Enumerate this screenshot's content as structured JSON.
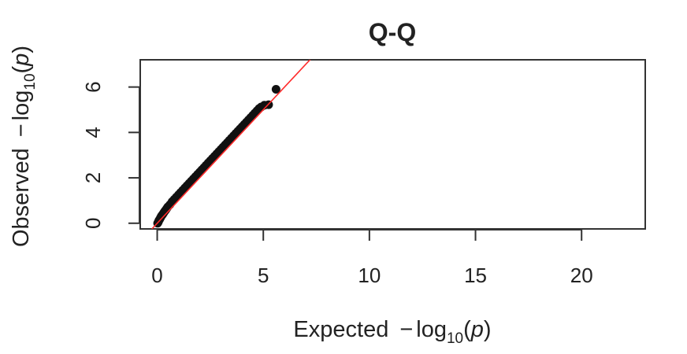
{
  "chart_data": {
    "type": "scatter",
    "title": "Q-Q",
    "xlabel": {
      "prefix": "Expected",
      "minus": "−",
      "log": "log",
      "sub": "10",
      "arg": "p"
    },
    "ylabel": {
      "prefix": "Observed",
      "minus": "−",
      "log": "log",
      "sub": "10",
      "arg": "p"
    },
    "xlim": [
      -0.8,
      23
    ],
    "ylim": [
      -0.25,
      7.2
    ],
    "xticks": [
      0,
      5,
      10,
      15,
      20
    ],
    "yticks": [
      0,
      2,
      4,
      6
    ],
    "grid": false,
    "series": [
      {
        "marker_color": "#111111",
        "points": [
          [
            0.02,
            0.0
          ],
          [
            0.05,
            0.05
          ],
          [
            0.08,
            0.12
          ],
          [
            0.12,
            0.18
          ],
          [
            0.16,
            0.25
          ],
          [
            0.2,
            0.32
          ],
          [
            0.25,
            0.38
          ],
          [
            0.3,
            0.45
          ],
          [
            0.35,
            0.52
          ],
          [
            0.4,
            0.58
          ],
          [
            0.45,
            0.65
          ],
          [
            0.5,
            0.72
          ],
          [
            0.6,
            0.82
          ],
          [
            0.7,
            0.95
          ],
          [
            0.8,
            1.05
          ],
          [
            0.9,
            1.15
          ],
          [
            1.0,
            1.25
          ],
          [
            1.1,
            1.35
          ],
          [
            1.2,
            1.45
          ],
          [
            1.3,
            1.55
          ],
          [
            1.4,
            1.65
          ],
          [
            1.5,
            1.75
          ],
          [
            1.6,
            1.85
          ],
          [
            1.7,
            1.95
          ],
          [
            1.8,
            2.05
          ],
          [
            1.9,
            2.15
          ],
          [
            2.0,
            2.25
          ],
          [
            2.1,
            2.35
          ],
          [
            2.2,
            2.45
          ],
          [
            2.3,
            2.55
          ],
          [
            2.4,
            2.65
          ],
          [
            2.5,
            2.75
          ],
          [
            2.6,
            2.85
          ],
          [
            2.7,
            2.95
          ],
          [
            2.8,
            3.05
          ],
          [
            2.9,
            3.15
          ],
          [
            3.0,
            3.25
          ],
          [
            3.1,
            3.35
          ],
          [
            3.2,
            3.45
          ],
          [
            3.3,
            3.55
          ],
          [
            3.4,
            3.65
          ],
          [
            3.5,
            3.75
          ],
          [
            3.6,
            3.85
          ],
          [
            3.7,
            3.95
          ],
          [
            3.8,
            4.05
          ],
          [
            3.9,
            4.15
          ],
          [
            4.0,
            4.25
          ],
          [
            4.1,
            4.35
          ],
          [
            4.2,
            4.45
          ],
          [
            4.3,
            4.55
          ],
          [
            4.4,
            4.65
          ],
          [
            4.5,
            4.75
          ],
          [
            4.6,
            4.85
          ],
          [
            4.7,
            4.95
          ],
          [
            4.8,
            5.05
          ],
          [
            4.9,
            5.12
          ],
          [
            5.05,
            5.2
          ],
          [
            5.25,
            5.22
          ],
          [
            5.6,
            5.9
          ]
        ]
      }
    ],
    "reference_line": {
      "type": "y=x",
      "color": "#ff2a2a"
    }
  }
}
